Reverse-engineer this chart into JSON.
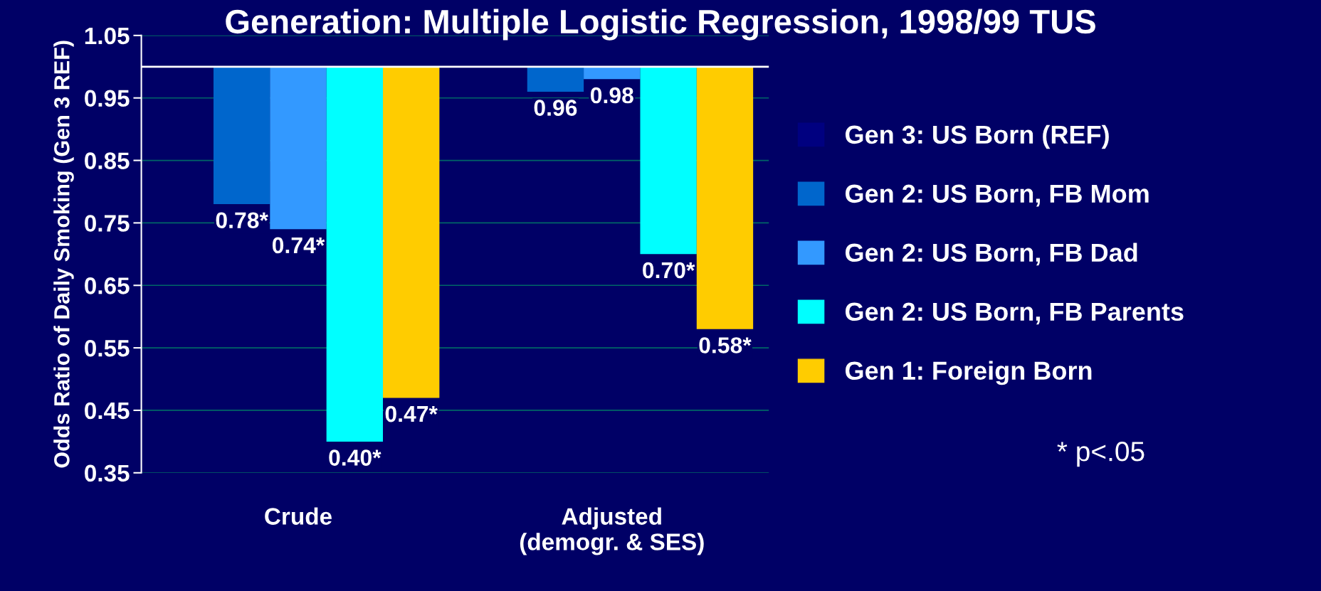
{
  "chart_data": {
    "type": "bar",
    "title": "Generation: Multiple Logistic Regression, 1998/99 TUS",
    "ylabel": "Odds Ratio of Daily Smoking (Gen 3 REF)",
    "categories": [
      "Crude",
      "Adjusted\n(demogr. & SES)"
    ],
    "series": [
      {
        "name": "Gen 3: US Born (REF)",
        "color": "#000080",
        "values": [
          null,
          null
        ]
      },
      {
        "name": "Gen 2: US Born, FB Mom",
        "color": "#0066cc",
        "base": [
          1,
          1
        ],
        "values": [
          -0.22,
          -0.04
        ],
        "value_labels": [
          "0.78*",
          "0.96"
        ]
      },
      {
        "name": "Gen 2: US Born, FB Dad",
        "color": "#3399ff",
        "base": [
          1,
          1
        ],
        "values": [
          -0.26,
          -0.02
        ],
        "value_labels": [
          "0.74*",
          "0.98"
        ]
      },
      {
        "name": "Gen 2: US Born, FB Parents",
        "color": "#00ffff",
        "base": [
          1,
          1
        ],
        "values": [
          -0.6,
          -0.3
        ],
        "value_labels": [
          "0.40*",
          "0.70*"
        ]
      },
      {
        "name": "Gen 1: Foreign Born",
        "color": "#ffcc00",
        "base": [
          1,
          1
        ],
        "values": [
          -0.53,
          -0.42
        ],
        "value_labels": [
          "0.47*",
          "0.58*"
        ]
      }
    ],
    "ylim": [
      0.35,
      1.05
    ],
    "yticks": [
      0.35,
      0.45,
      0.55,
      0.65,
      0.75,
      0.85,
      0.95,
      1.05
    ],
    "ref_lines": [
      {
        "axis": "y",
        "value": 1,
        "color": "#ffffff"
      }
    ],
    "grid": "y",
    "legend": "right",
    "annotations": [
      "* p<.05"
    ]
  }
}
